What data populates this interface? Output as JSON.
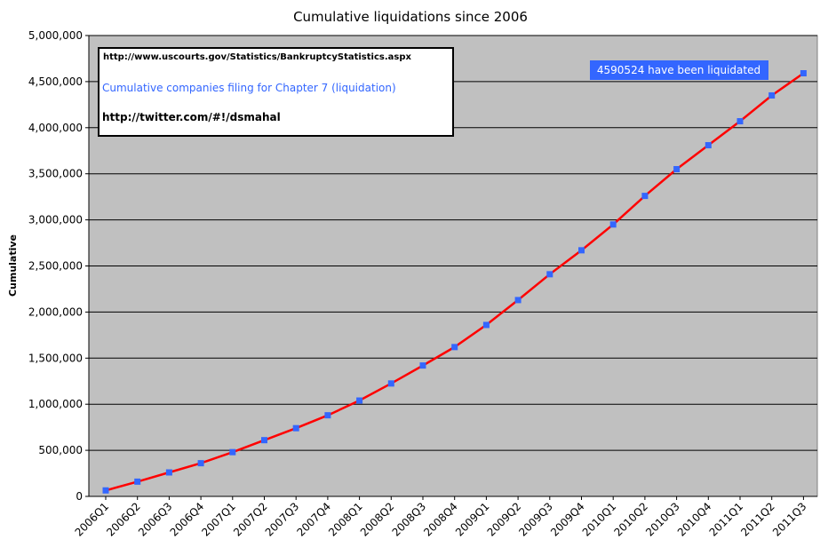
{
  "chart_data": {
    "type": "line",
    "title": "Cumulative liquidations since 2006",
    "xlabel": "",
    "ylabel": "Cumulative",
    "ylim": [
      0,
      5000000
    ],
    "yticks": [
      0,
      500000,
      1000000,
      1500000,
      2000000,
      2500000,
      3000000,
      3500000,
      4000000,
      4500000,
      5000000
    ],
    "ytick_labels": [
      "0",
      "500,000",
      "1,000,000",
      "1,500,000",
      "2,000,000",
      "2,500,000",
      "3,000,000",
      "3,500,000",
      "4,000,000",
      "4,500,000",
      "5,000,000"
    ],
    "categories": [
      "2006Q1",
      "2006Q2",
      "2006Q3",
      "2006Q4",
      "2007Q1",
      "2007Q2",
      "2007Q3",
      "2007Q4",
      "2008Q1",
      "2008Q2",
      "2008Q3",
      "2008Q4",
      "2009Q1",
      "2009Q2",
      "2009Q3",
      "2009Q4",
      "2010Q1",
      "2010Q2",
      "2010Q3",
      "2010Q4",
      "2011Q1",
      "2011Q2",
      "2011Q3"
    ],
    "series": [
      {
        "values": [
          65000,
          160000,
          260000,
          360000,
          480000,
          610000,
          740000,
          880000,
          1040000,
          1225000,
          1420000,
          1620000,
          1860000,
          2130000,
          2410000,
          2670000,
          2950000,
          3260000,
          3550000,
          3810000,
          4070000,
          4350000,
          4590524
        ],
        "color": "#ff0000",
        "marker_color": "#3366ff"
      }
    ],
    "grid": "horizontal",
    "plot_background": "#c0c0c0",
    "annotations": {
      "source_url": "http://www.uscourts.gov/Statistics/BankruptcyStatistics.aspx",
      "description": "Cumulative companies filing for Chapter 7 (liquidation)",
      "twitter": "http://twitter.com/#!/dsmahal",
      "callout": "4590524 have been liquidated",
      "callout_background": "#3366ff"
    }
  }
}
